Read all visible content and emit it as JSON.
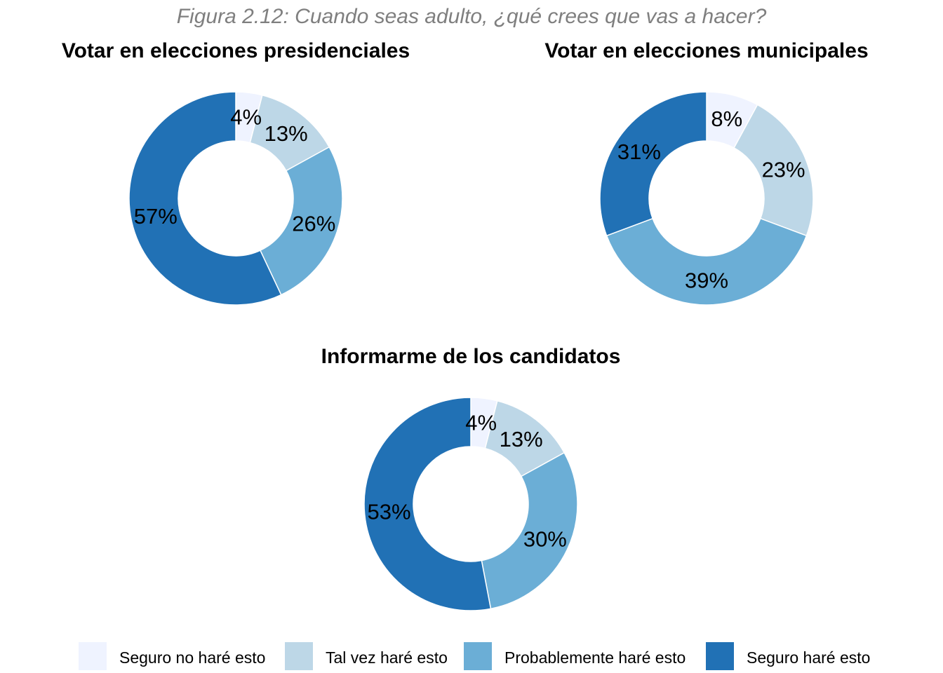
{
  "figure": {
    "title": "Figura 2.12: Cuando seas adulto, ¿qué crees que vas a hacer?"
  },
  "legend": [
    {
      "label": "Seguro no haré esto",
      "color": "#eff3ff"
    },
    {
      "label": "Tal vez haré esto",
      "color": "#bdd7e7"
    },
    {
      "label": "Probablemente haré esto",
      "color": "#6baed6"
    },
    {
      "label": "Seguro haré esto",
      "color": "#2171b5"
    }
  ],
  "chart_data": [
    {
      "type": "pie",
      "title": "Votar en elecciones presidenciales",
      "categories": [
        "Seguro no haré esto",
        "Tal vez haré esto",
        "Probablemente haré esto",
        "Seguro haré esto"
      ],
      "values": [
        4,
        13,
        26,
        57
      ],
      "labels": [
        "4%",
        "13%",
        "26%",
        "57%"
      ]
    },
    {
      "type": "pie",
      "title": "Votar en elecciones municipales",
      "categories": [
        "Seguro no haré esto",
        "Tal vez haré esto",
        "Probablemente haré esto",
        "Seguro haré esto"
      ],
      "values": [
        8,
        23,
        39,
        31
      ],
      "labels": [
        "8%",
        "23%",
        "39%",
        "31%"
      ]
    },
    {
      "type": "pie",
      "title": "Informarme de los candidatos",
      "categories": [
        "Seguro no haré esto",
        "Tal vez haré esto",
        "Probablemente haré esto",
        "Seguro haré esto"
      ],
      "values": [
        4,
        13,
        30,
        53
      ],
      "labels": [
        "4%",
        "13%",
        "30%",
        "53%"
      ]
    }
  ]
}
